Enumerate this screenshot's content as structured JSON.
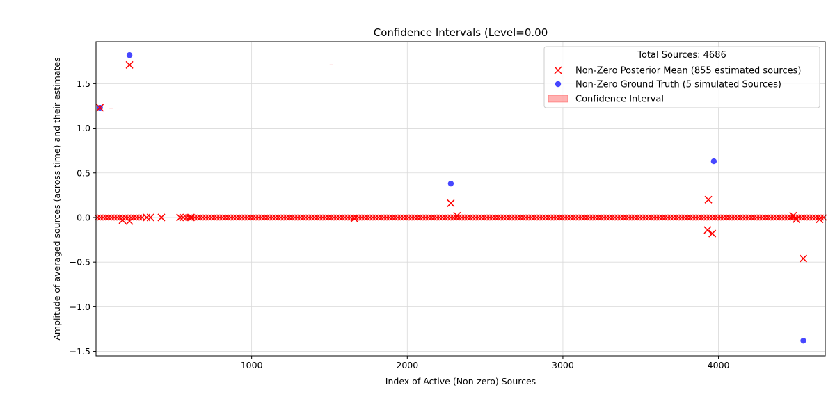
{
  "chart_data": {
    "type": "scatter",
    "title": "Confidence Intervals (Level=0.00",
    "xlabel": "Index of Active (Non-zero) Sources",
    "ylabel": "Amplitude of averaged sources (across time) and their estimates",
    "xlim": [
      0,
      4686
    ],
    "ylim": [
      -1.55,
      1.97
    ],
    "xticks": [
      1000,
      2000,
      3000,
      4000
    ],
    "xtick_labels": [
      "1000",
      "2000",
      "3000",
      "4000"
    ],
    "yticks": [
      -1.5,
      -1.0,
      -0.5,
      0.0,
      0.5,
      1.0,
      1.5
    ],
    "ytick_labels": [
      "−1.5",
      "−1.0",
      "−0.5",
      "0.0",
      "0.5",
      "1.0",
      "1.5"
    ],
    "grid": true,
    "legend": {
      "title": "Total Sources: 4686",
      "placement": "upper right",
      "entries": [
        "Non-Zero Posterior Mean (855 estimated sources)",
        "Non-Zero Ground Truth (5 simulated Sources)",
        "Confidence Interval"
      ]
    },
    "series": [
      {
        "name": "Non-Zero Posterior Mean (855 estimated sources)",
        "marker": "x",
        "color": "#ff0000",
        "points": [
          [
            25,
            1.23
          ],
          [
            170,
            -0.03
          ],
          [
            215,
            1.71
          ],
          [
            215,
            -0.04
          ],
          [
            325,
            0.0
          ],
          [
            350,
            0.0
          ],
          [
            420,
            0.0
          ],
          [
            540,
            0.0
          ],
          [
            560,
            0.0
          ],
          [
            610,
            0.0
          ],
          [
            1660,
            -0.01
          ],
          [
            2280,
            0.16
          ],
          [
            2320,
            0.02
          ],
          [
            3935,
            0.2
          ],
          [
            3930,
            -0.14
          ],
          [
            3960,
            -0.18
          ],
          [
            4480,
            0.02
          ],
          [
            4500,
            -0.02
          ],
          [
            4545,
            -0.46
          ],
          [
            4650,
            -0.02
          ]
        ],
        "zero_band_ranges": [
          [
            10,
            310
          ],
          [
            580,
            4686
          ]
        ]
      },
      {
        "name": "Non-Zero Ground Truth (5 simulated Sources)",
        "marker": "o",
        "color": "#0000ff",
        "points": [
          [
            25,
            1.23
          ],
          [
            215,
            1.82
          ],
          [
            2280,
            0.38
          ],
          [
            3970,
            0.63
          ],
          [
            4545,
            -1.38
          ]
        ]
      }
    ]
  }
}
